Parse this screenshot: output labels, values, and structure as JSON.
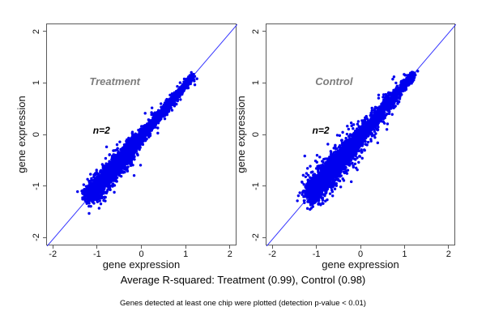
{
  "figure": {
    "background": "#ffffff"
  },
  "captions": {
    "r_squared_line": "Average R-squared: Treatment (0.99), Control (0.98)",
    "note_line": "Genes detected at least one chip were plotted (detection p-value < 0.01)"
  },
  "chart_data": [
    {
      "type": "scatter",
      "id": "treatment",
      "group_label": "Treatment",
      "annotation": "n=2",
      "r_squared": 0.99,
      "xlabel": "gene expression",
      "ylabel": "gene expression",
      "xlim": [
        -2.15,
        2.15
      ],
      "ylim": [
        -2.15,
        2.15
      ],
      "xticks": [
        -2,
        -1,
        0,
        1,
        2
      ],
      "yticks": [
        -2,
        -1,
        0,
        1,
        2
      ],
      "grid": false,
      "identity_line": true,
      "line_color": "#3434ff",
      "point_color": "#0000ee",
      "label_color": "#7d7d7d",
      "label_pos": [
        -0.6,
        1.02
      ],
      "annotation_pos": [
        -0.9,
        0.08
      ],
      "cloud": {
        "seed": 42,
        "n_points": 4600,
        "t_min": -1.15,
        "t_max": 1.16,
        "t_mean": -0.6,
        "t_sd": 0.42,
        "mix_uniform": 0.35,
        "spread_base": 0.026,
        "spread_slope": 0.05,
        "halo_frac": 0.1,
        "halo_mult": 2.0,
        "n_outliers": 22,
        "outlier_sd": 0.16
      }
    },
    {
      "type": "scatter",
      "id": "control",
      "group_label": "Control",
      "annotation": "n=2",
      "r_squared": 0.98,
      "xlabel": "gene expression",
      "ylabel": "gene expression",
      "xlim": [
        -2.15,
        2.15
      ],
      "ylim": [
        -2.15,
        2.15
      ],
      "xticks": [
        -2,
        -1,
        0,
        1,
        2
      ],
      "yticks": [
        -2,
        -1,
        0,
        1,
        2
      ],
      "grid": false,
      "identity_line": true,
      "line_color": "#3434ff",
      "point_color": "#0000ee",
      "label_color": "#7d7d7d",
      "label_pos": [
        -0.6,
        1.02
      ],
      "annotation_pos": [
        -0.9,
        0.08
      ],
      "cloud": {
        "seed": 13,
        "n_points": 5000,
        "t_min": -1.12,
        "t_max": 1.18,
        "t_mean": -0.55,
        "t_sd": 0.45,
        "mix_uniform": 0.35,
        "spread_base": 0.036,
        "spread_slope": 0.055,
        "halo_frac": 0.13,
        "halo_mult": 2.1,
        "n_outliers": 45,
        "outlier_sd": 0.15
      }
    }
  ]
}
